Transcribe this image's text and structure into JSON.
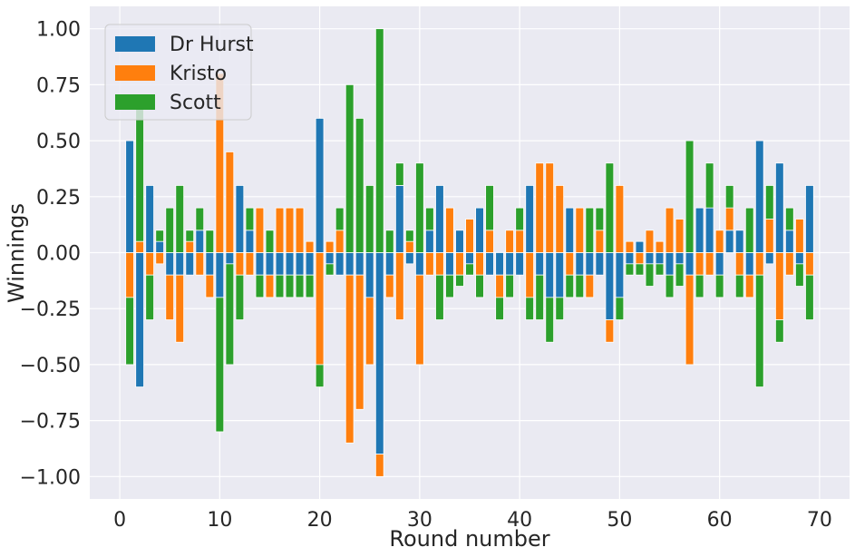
{
  "chart_data": {
    "type": "bar",
    "stacked": true,
    "xlabel": "Round number",
    "ylabel": "Winnings",
    "xlim": [
      -3,
      73
    ],
    "ylim": [
      -1.1,
      1.1
    ],
    "xticks": [
      0,
      10,
      20,
      30,
      40,
      50,
      60,
      70
    ],
    "xtick_labels": [
      "0",
      "10",
      "20",
      "30",
      "40",
      "50",
      "60",
      "70"
    ],
    "yticks": [
      -1.0,
      -0.75,
      -0.5,
      -0.25,
      0.0,
      0.25,
      0.5,
      0.75,
      1.0
    ],
    "ytick_labels": [
      "−1.00",
      "−0.75",
      "−0.50",
      "−0.25",
      "0.00",
      "0.25",
      "0.50",
      "0.75",
      "1.00"
    ],
    "grid": true,
    "legend_position": "top-left",
    "background": "#EAEAF2",
    "x": [
      1,
      2,
      3,
      4,
      5,
      6,
      7,
      8,
      9,
      10,
      11,
      12,
      13,
      14,
      15,
      16,
      17,
      18,
      19,
      20,
      21,
      22,
      23,
      24,
      25,
      26,
      27,
      28,
      29,
      30,
      31,
      32,
      33,
      34,
      35,
      36,
      37,
      38,
      39,
      40,
      41,
      42,
      43,
      44,
      45,
      46,
      47,
      48,
      49,
      50,
      51,
      52,
      53,
      54,
      55,
      56,
      57,
      58,
      59,
      60,
      61,
      62,
      63,
      64,
      65,
      66,
      67,
      68,
      69
    ],
    "series": [
      {
        "name": "Dr Hurst",
        "color": "#1F77B4",
        "values": [
          0.5,
          -0.6,
          0.3,
          0.05,
          -0.1,
          -0.1,
          -0.1,
          0.1,
          -0.1,
          -0.2,
          -0.05,
          0.3,
          0.1,
          -0.1,
          -0.1,
          -0.1,
          -0.1,
          -0.1,
          -0.1,
          0.6,
          -0.05,
          -0.1,
          -0.1,
          -0.1,
          -0.2,
          -0.9,
          -0.1,
          0.3,
          -0.05,
          -0.1,
          0.1,
          0.3,
          -0.1,
          0.1,
          -0.05,
          0.2,
          -0.1,
          -0.1,
          -0.1,
          -0.1,
          0.3,
          -0.1,
          -0.2,
          -0.2,
          0.2,
          -0.1,
          -0.1,
          -0.1,
          -0.3,
          -0.2,
          -0.05,
          0.05,
          -0.05,
          -0.05,
          -0.1,
          -0.05,
          -0.1,
          0.2,
          0.2,
          -0.1,
          0.1,
          0.1,
          -0.1,
          0.5,
          -0.05,
          0.4,
          0.1,
          -0.05,
          0.3
        ]
      },
      {
        "name": "Kristo",
        "color": "#FF7F0E",
        "values": [
          -0.2,
          0.05,
          -0.1,
          -0.05,
          -0.2,
          -0.3,
          0.05,
          -0.1,
          -0.1,
          0.8,
          0.45,
          -0.1,
          -0.1,
          0.2,
          -0.1,
          0.2,
          0.2,
          0.2,
          0.05,
          -0.5,
          0.05,
          0.1,
          -0.75,
          -0.6,
          -0.3,
          -0.1,
          -0.1,
          -0.3,
          0.05,
          -0.4,
          -0.1,
          -0.1,
          0.2,
          -0.1,
          0.15,
          -0.1,
          0.1,
          -0.1,
          0.1,
          0.1,
          -0.2,
          0.4,
          0.4,
          0.3,
          -0.1,
          0.2,
          -0.1,
          0.1,
          -0.1,
          0.3,
          0.05,
          -0.05,
          0.1,
          0.05,
          0.2,
          0.15,
          -0.4,
          -0.1,
          -0.1,
          0.1,
          0.1,
          -0.1,
          -0.1,
          -0.1,
          0.15,
          -0.3,
          -0.1,
          0.15,
          -0.1
        ]
      },
      {
        "name": "Scott",
        "color": "#2CA02C",
        "values": [
          -0.3,
          0.6,
          -0.2,
          0.05,
          0.2,
          0.3,
          0.05,
          0.1,
          0.1,
          -0.6,
          -0.45,
          -0.2,
          0.1,
          -0.1,
          0.1,
          -0.1,
          -0.1,
          -0.1,
          -0.1,
          -0.1,
          -0.05,
          0.1,
          0.75,
          0.6,
          0.3,
          1.0,
          0.1,
          0.1,
          0.05,
          0.4,
          0.1,
          -0.2,
          -0.1,
          -0.05,
          -0.05,
          -0.1,
          0.2,
          -0.1,
          -0.1,
          0.1,
          -0.1,
          -0.2,
          -0.2,
          -0.1,
          -0.1,
          -0.1,
          0.2,
          0.1,
          0.4,
          -0.1,
          -0.05,
          -0.05,
          -0.1,
          -0.05,
          -0.1,
          -0.1,
          0.5,
          -0.1,
          0.2,
          -0.1,
          0.1,
          -0.1,
          0.2,
          -0.5,
          0.15,
          -0.1,
          0.1,
          -0.1,
          -0.2
        ]
      }
    ]
  }
}
